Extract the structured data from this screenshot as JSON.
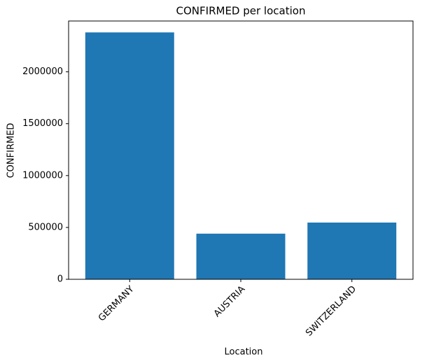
{
  "chart_data": {
    "type": "bar",
    "title": "CONFIRMED per location",
    "x_label": "Location",
    "y_label": "CONFIRMED",
    "categories": [
      "GERMANY",
      "AUSTRIA",
      "SWITZERLAND"
    ],
    "values": [
      2380000,
      440000,
      547000
    ],
    "color": "#1f77b4",
    "ylim": [
      0,
      2490000
    ],
    "yticks": [
      0,
      500000,
      1000000,
      1500000,
      2000000
    ],
    "grid": false
  }
}
